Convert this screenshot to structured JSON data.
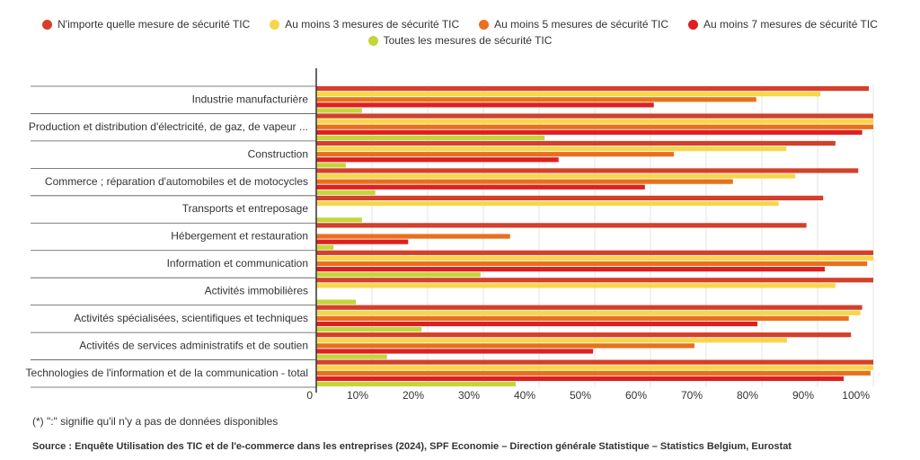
{
  "chart_data": {
    "type": "hbar",
    "categories": [
      "Industrie manufacturière",
      "Production et distribution d'électricité, de gaz, de vapeur ...",
      "Construction",
      "Commerce ; réparation d'automobiles et de motocycles",
      "Transports et entreposage",
      "Hébergement et restauration",
      "Information et communication",
      "Activités immobilières",
      "Activités spécialisées, scientifiques et techniques",
      "Activités de services administratifs et de soutien",
      "Technologies de l'information et de la communication - total"
    ],
    "series": [
      {
        "name": "N'importe quelle mesure de sécurité TIC",
        "color": "#d4402a",
        "values": [
          99.2,
          100,
          93.2,
          97.3,
          91,
          88,
          100,
          100,
          98,
          96,
          100
        ]
      },
      {
        "name": "Au moins 3 mesures de sécurité TIC",
        "color": "#f8d64a",
        "values": [
          90.5,
          100,
          84.4,
          86,
          83,
          null,
          100,
          93.2,
          97.7,
          84.5,
          100
        ]
      },
      {
        "name": "Au moins 5 mesures de sécurité TIC",
        "color": "#e8701c",
        "values": [
          79,
          100,
          64.2,
          74.8,
          null,
          34.8,
          98.9,
          null,
          95.6,
          67.9,
          99.5
        ]
      },
      {
        "name": "Au moins 7 mesures de sécurité TIC",
        "color": "#df1f1f",
        "values": [
          60.6,
          98,
          43.5,
          59,
          null,
          16.5,
          91.3,
          null,
          79.2,
          49.7,
          94.7
        ]
      },
      {
        "name": "Toutes les mesures de sécurité TIC",
        "color": "#c3d53a",
        "values": [
          8.2,
          41,
          5.3,
          10.6,
          8.2,
          3.1,
          29.5,
          7.1,
          18.9,
          12.7,
          35.8
        ]
      }
    ],
    "xlim": [
      0,
      100
    ],
    "xticks": [
      0,
      {
        "value": 10,
        "label": "10%"
      },
      {
        "value": 20,
        "label": "20%"
      },
      {
        "value": 30,
        "label": "30%"
      },
      {
        "value": 40,
        "label": "40%"
      },
      {
        "value": 50,
        "label": "50%"
      },
      {
        "value": 60,
        "label": "60%"
      },
      {
        "value": 70,
        "label": "70%"
      },
      {
        "value": 80,
        "label": "80%"
      },
      {
        "value": 90,
        "label": "90%"
      },
      {
        "value": 100,
        "label": "100%"
      }
    ],
    "grid": true,
    "note": "(*) \":\" signifie qu'il n'y a pas de données disponibles",
    "source": "Source : Enquête Utilisation des TIC et de l'e-commerce dans les entreprises (2024), SPF Economie – Direction générale Statistique – Statistics Belgium, Eurostat"
  }
}
